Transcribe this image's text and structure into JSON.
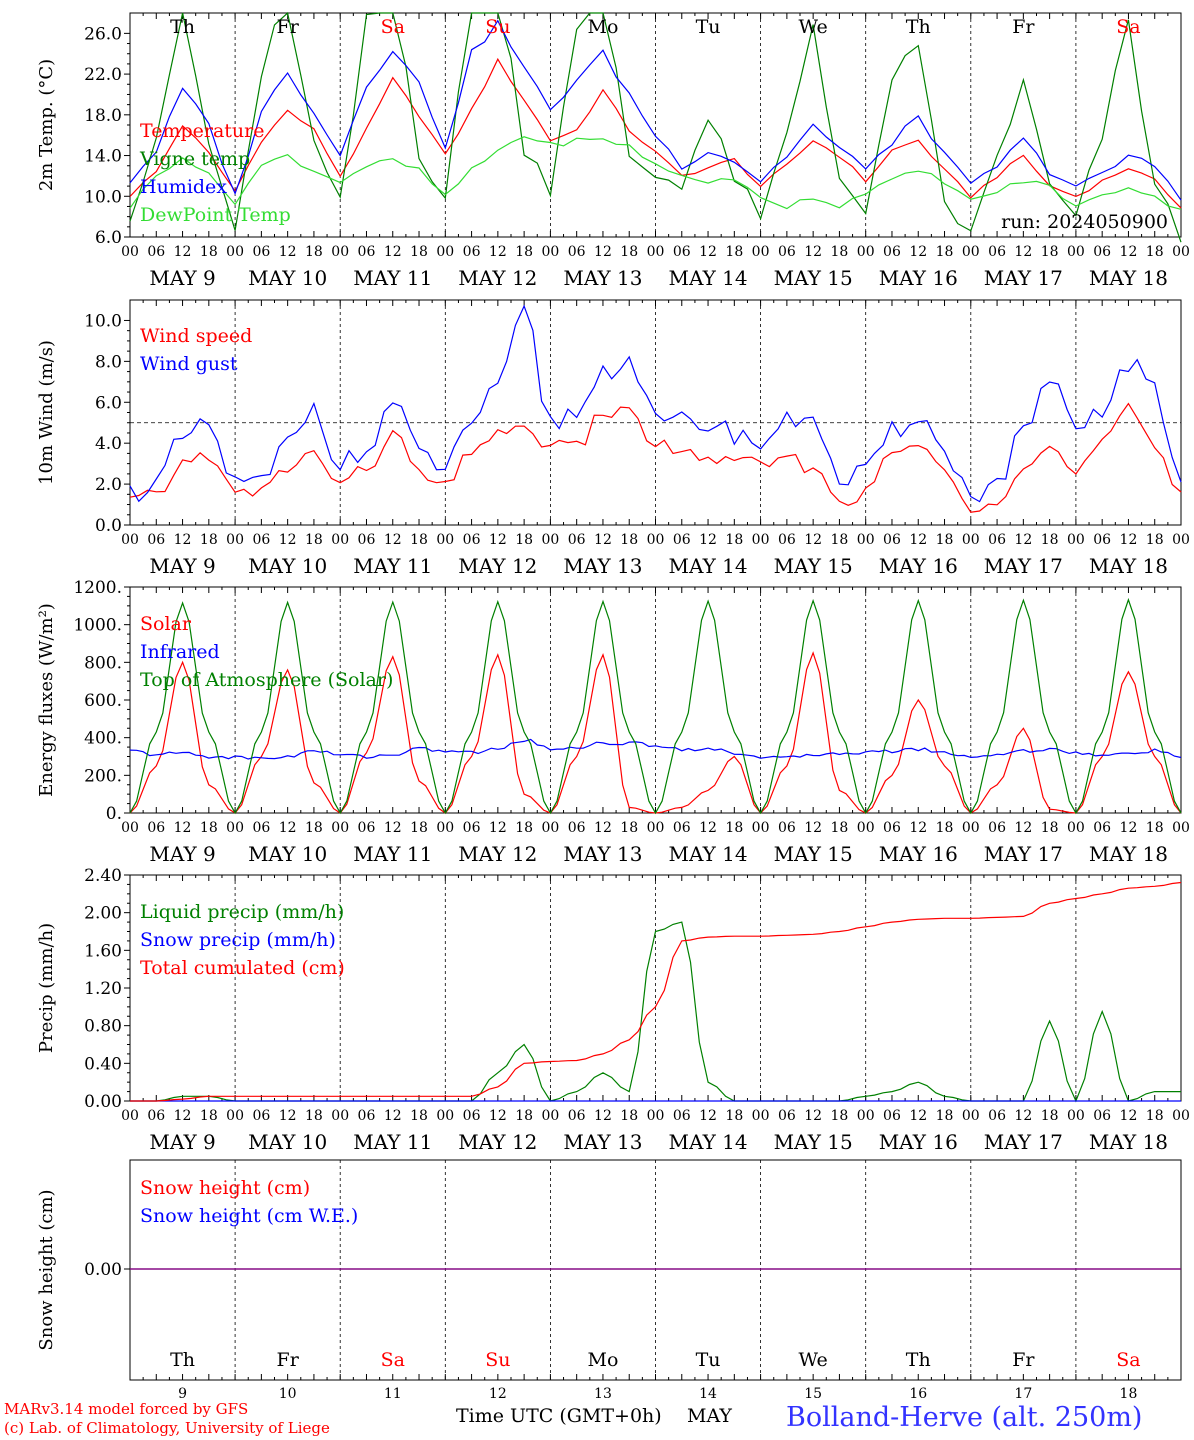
{
  "days": {
    "weekdays": [
      "Th",
      "Fr",
      "Sa",
      "Su",
      "Mo",
      "Tu",
      "We",
      "Th",
      "Fr",
      "Sa"
    ],
    "weekend_flags": [
      false,
      false,
      true,
      true,
      false,
      false,
      false,
      false,
      false,
      true
    ],
    "dates": [
      "MAY   9",
      "MAY 10",
      "MAY 11",
      "MAY 12",
      "MAY 13",
      "MAY 14",
      "MAY 15",
      "MAY 16",
      "MAY 17",
      "MAY 18"
    ],
    "date_numbers": [
      "9",
      "10",
      "11",
      "12",
      "13",
      "14",
      "15",
      "16",
      "17",
      "18"
    ],
    "hour_ticks": [
      "00",
      "06",
      "12",
      "18"
    ],
    "final_tick": "00"
  },
  "colors": {
    "red": "#ff0000",
    "darkgreen": "#008000",
    "blue": "#0000ff",
    "lightgreen": "#33dd33",
    "purple": "#800080",
    "weekend": "#ff0000"
  },
  "chart_data": [
    {
      "id": "temp",
      "type": "line",
      "ylabel": "2m Temp. (°C)",
      "ylim": [
        6,
        28
      ],
      "yticks": [
        "6.0",
        "10.0",
        "14.0",
        "18.0",
        "22.0",
        "26.0"
      ],
      "grid": "vertical dashed at day boundaries",
      "legend_position": "left",
      "annotation": "run: 2024050900",
      "x_hours": [
        0,
        6,
        12,
        18,
        24,
        30,
        36,
        42,
        48,
        54,
        60,
        66,
        72,
        78,
        84,
        90,
        96,
        102,
        108,
        114,
        120,
        126,
        132,
        138,
        144,
        150,
        156,
        162,
        168,
        174,
        180,
        186,
        192,
        198,
        204,
        210,
        216,
        222,
        228,
        234,
        240
      ],
      "series": [
        {
          "name": "Temperature",
          "color": "red",
          "values": [
            10.1,
            12.4,
            17.0,
            14.2,
            10.5,
            15.5,
            18.4,
            16.5,
            12.0,
            16.5,
            21.5,
            18.0,
            14.0,
            18.5,
            23.3,
            19.5,
            15.5,
            16.5,
            20.4,
            16.5,
            14.3,
            12.0,
            12.8,
            13.6,
            11.0,
            13.0,
            15.5,
            14.0,
            11.5,
            14.5,
            15.5,
            12.5,
            10.0,
            12.0,
            14.0,
            11.0,
            10.0,
            11.5,
            12.8,
            11.5,
            9.0
          ]
        },
        {
          "name": "Vigne temp",
          "color": "darkgreen",
          "values": [
            8.5,
            16.0,
            28.5,
            15.0,
            6.5,
            22.0,
            30.0,
            15.0,
            9.0,
            27.0,
            31.0,
            14.5,
            10.0,
            29.0,
            31.0,
            15.0,
            11.0,
            27.0,
            30.0,
            14.0,
            12.0,
            11.5,
            17.5,
            12.0,
            7.5,
            16.0,
            27.0,
            12.0,
            7.5,
            22.0,
            24.0,
            9.5,
            6.0,
            14.0,
            21.0,
            11.0,
            7.5,
            16.0,
            27.0,
            11.0,
            6.0
          ]
        },
        {
          "name": "Humidex",
          "color": "blue",
          "values": [
            11.5,
            14.5,
            20.5,
            17.0,
            10.0,
            18.5,
            22.0,
            18.5,
            14.0,
            21.0,
            24.5,
            21.0,
            15.0,
            24.0,
            27.0,
            22.5,
            18.5,
            21.5,
            24.0,
            20.0,
            16.0,
            13.0,
            14.5,
            13.5,
            11.5,
            14.0,
            17.0,
            14.5,
            13.0,
            15.0,
            18.0,
            14.0,
            11.0,
            13.0,
            15.5,
            12.5,
            11.0,
            12.0,
            14.0,
            13.0,
            10.0
          ]
        },
        {
          "name": "DewPoint Temp",
          "color": "lightgreen",
          "values": [
            9.0,
            12.0,
            14.0,
            12.0,
            9.5,
            13.0,
            14.0,
            12.5,
            11.5,
            13.0,
            13.5,
            12.5,
            10.0,
            12.5,
            14.5,
            16.0,
            15.0,
            15.5,
            15.5,
            15.0,
            13.0,
            12.0,
            11.5,
            11.5,
            10.0,
            9.0,
            10.0,
            9.0,
            10.5,
            11.5,
            12.5,
            11.5,
            9.5,
            10.5,
            11.5,
            11.0,
            9.0,
            10.0,
            11.0,
            10.0,
            8.5
          ]
        }
      ]
    },
    {
      "id": "wind",
      "type": "line",
      "ylabel": "10m Wind (m/s)",
      "ylim": [
        0,
        11
      ],
      "yticks": [
        "0.0",
        "2.0",
        "4.0",
        "6.0",
        "8.0",
        "10.0"
      ],
      "reference_line": 5,
      "grid": "vertical dashed at day boundaries",
      "legend_position": "left",
      "x_hours": [
        0,
        6,
        12,
        18,
        24,
        30,
        36,
        42,
        48,
        54,
        60,
        66,
        72,
        78,
        84,
        90,
        96,
        102,
        108,
        114,
        120,
        126,
        132,
        138,
        144,
        150,
        156,
        162,
        168,
        174,
        180,
        186,
        192,
        198,
        204,
        210,
        216,
        222,
        228,
        234,
        240
      ],
      "series": [
        {
          "name": "Wind speed",
          "color": "red",
          "values": [
            1.2,
            1.4,
            3.0,
            3.5,
            1.5,
            1.6,
            2.8,
            3.5,
            2.0,
            2.7,
            4.5,
            2.5,
            1.8,
            3.5,
            4.7,
            4.5,
            4.0,
            3.8,
            5.5,
            5.5,
            4.0,
            3.5,
            3.3,
            3.0,
            3.0,
            3.2,
            2.8,
            1.2,
            1.5,
            3.5,
            4.0,
            2.5,
            0.9,
            1.3,
            3.0,
            3.8,
            2.5,
            4.0,
            5.6,
            3.8,
            1.6
          ]
        },
        {
          "name": "Wind gust",
          "color": "blue",
          "values": [
            1.6,
            2.0,
            4.2,
            4.8,
            2.0,
            2.0,
            4.0,
            5.8,
            3.0,
            3.5,
            6.0,
            3.5,
            2.8,
            5.2,
            6.5,
            10.4,
            5.0,
            5.5,
            7.5,
            8.2,
            5.0,
            5.0,
            5.0,
            4.5,
            4.0,
            5.0,
            5.5,
            2.0,
            2.5,
            4.5,
            5.5,
            3.5,
            1.5,
            2.0,
            4.5,
            7.0,
            4.5,
            5.5,
            8.0,
            6.5,
            2.0
          ]
        }
      ]
    },
    {
      "id": "flux",
      "type": "line",
      "ylabel": "Energy fluxes (W/m²)",
      "ylim": [
        0,
        1200
      ],
      "yticks": [
        "0.",
        "200.",
        "400.",
        "600.",
        "800.",
        "1000.",
        "1200."
      ],
      "grid": "vertical dashed at day boundaries",
      "legend_position": "left",
      "x_hours": [
        0,
        6,
        12,
        18,
        24,
        30,
        36,
        42,
        48,
        54,
        60,
        66,
        72,
        78,
        84,
        90,
        96,
        102,
        108,
        114,
        120,
        126,
        132,
        138,
        144,
        150,
        156,
        162,
        168,
        174,
        180,
        186,
        192,
        198,
        204,
        210,
        216,
        222,
        228,
        234,
        240
      ],
      "series": [
        {
          "name": "Solar",
          "color": "red",
          "values": [
            0,
            250,
            800,
            150,
            0,
            300,
            760,
            160,
            0,
            320,
            830,
            170,
            0,
            300,
            840,
            100,
            0,
            300,
            840,
            30,
            0,
            30,
            120,
            300,
            0,
            250,
            850,
            120,
            0,
            200,
            600,
            250,
            0,
            150,
            450,
            20,
            0,
            300,
            750,
            300,
            0
          ]
        },
        {
          "name": "Infrared",
          "color": "blue",
          "values": [
            330,
            310,
            320,
            300,
            295,
            290,
            300,
            330,
            310,
            300,
            310,
            340,
            330,
            320,
            340,
            390,
            340,
            350,
            370,
            370,
            360,
            340,
            340,
            320,
            300,
            290,
            310,
            320,
            320,
            330,
            340,
            320,
            300,
            310,
            330,
            340,
            320,
            300,
            320,
            330,
            300
          ]
        },
        {
          "name": "Top of Atmosphere (Solar)",
          "color": "darkgreen",
          "values": [
            0,
            430,
            1115,
            430,
            0,
            430,
            1118,
            430,
            0,
            430,
            1120,
            430,
            0,
            430,
            1122,
            430,
            0,
            430,
            1123,
            430,
            0,
            430,
            1125,
            430,
            0,
            430,
            1127,
            430,
            0,
            430,
            1128,
            430,
            0,
            430,
            1130,
            430,
            0,
            430,
            1132,
            430,
            0
          ]
        }
      ]
    },
    {
      "id": "precip",
      "type": "line",
      "ylabel": "Precip (mm/h)",
      "ylim": [
        0,
        2.4
      ],
      "yticks": [
        "0.00",
        "0.40",
        "0.80",
        "1.20",
        "1.60",
        "2.00",
        "2.40"
      ],
      "grid": "vertical dashed at day boundaries",
      "legend_position": "left",
      "x_hours": [
        0,
        6,
        12,
        18,
        24,
        30,
        36,
        42,
        48,
        54,
        60,
        66,
        72,
        78,
        84,
        90,
        96,
        102,
        108,
        114,
        120,
        126,
        132,
        138,
        144,
        150,
        156,
        162,
        168,
        174,
        180,
        186,
        192,
        198,
        204,
        210,
        216,
        222,
        228,
        234,
        240
      ],
      "series": [
        {
          "name": "Liquid precip (mm/h)",
          "color": "darkgreen",
          "values": [
            0,
            0,
            0.05,
            0.05,
            0,
            0,
            0,
            0,
            0,
            0,
            0,
            0,
            0,
            0,
            0.3,
            0.6,
            0,
            0.1,
            0.3,
            0.1,
            1.8,
            1.9,
            0.2,
            0,
            0,
            0,
            0,
            0,
            0.05,
            0.1,
            0.2,
            0.05,
            0,
            0,
            0,
            0.85,
            0,
            0.95,
            0,
            0.1,
            0.1
          ]
        },
        {
          "name": "Snow precip (mm/h)",
          "color": "blue",
          "values": [
            0,
            0,
            0,
            0,
            0,
            0,
            0,
            0,
            0,
            0,
            0,
            0,
            0,
            0,
            0,
            0,
            0,
            0,
            0,
            0,
            0,
            0,
            0,
            0,
            0,
            0,
            0,
            0,
            0,
            0,
            0,
            0,
            0,
            0,
            0,
            0,
            0,
            0,
            0,
            0,
            0
          ]
        },
        {
          "name": "Total cumulated (cm)",
          "color": "red",
          "values": [
            0,
            0,
            0.02,
            0.05,
            0.05,
            0.05,
            0.05,
            0.05,
            0.05,
            0.05,
            0.05,
            0.05,
            0.05,
            0.05,
            0.15,
            0.4,
            0.42,
            0.43,
            0.5,
            0.65,
            1.0,
            1.7,
            1.74,
            1.75,
            1.75,
            1.76,
            1.77,
            1.8,
            1.85,
            1.9,
            1.93,
            1.94,
            1.94,
            1.95,
            1.96,
            2.1,
            2.15,
            2.2,
            2.26,
            2.28,
            2.32
          ]
        }
      ]
    },
    {
      "id": "snow",
      "type": "line",
      "ylabel": "Snow height (cm)",
      "yticks": [
        "0.00"
      ],
      "legend_position": "left",
      "x_hours": [
        0,
        240
      ],
      "series": [
        {
          "name": "Snow height (cm)",
          "color": "red",
          "values": [
            0,
            0
          ]
        },
        {
          "name": "Snow height (cm W.E.)",
          "color": "blue",
          "values": [
            0,
            0
          ]
        }
      ]
    }
  ],
  "footer": {
    "credit_line1": "MARv3.14 model forced by GFS",
    "credit_line2": "(c) Lab. of Climatology, University of Liege",
    "xaxis_label": "Time UTC (GMT+0h)",
    "month": "MAY",
    "station": "Bolland-Herve (alt. 250m)"
  }
}
